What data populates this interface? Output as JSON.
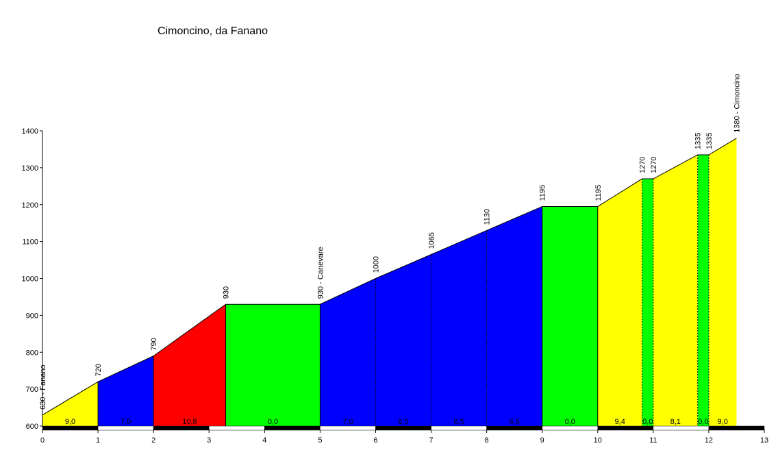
{
  "chart_data": {
    "type": "elevation-profile",
    "title": "Cimoncino, da Fanano",
    "x": [
      0,
      1,
      2,
      3.3,
      5,
      6,
      7,
      8,
      9,
      10,
      10.8,
      11,
      11.8,
      12,
      12.5
    ],
    "values": [
      630,
      720,
      790,
      930,
      930,
      1000,
      1065,
      1130,
      1195,
      1195,
      1270,
      1270,
      1335,
      1335,
      1380
    ],
    "value_labels": [
      "630 - Fanano",
      "720",
      "790",
      "930",
      "930 - Canevare",
      "1000",
      "1065",
      "1130",
      "1195",
      "1195",
      "1270",
      "1270",
      "1335",
      "1335",
      "1380 - Cimoncino"
    ],
    "segments": {
      "values": [
        9.0,
        7.0,
        10.8,
        0.0,
        7.0,
        6.5,
        6.5,
        6.5,
        0.0,
        9.4,
        0.0,
        8.1,
        0.0,
        9.0
      ],
      "value_labels": [
        "9,0",
        "7,0",
        "10,8",
        "0,0",
        "7,0",
        "6,5",
        "6,5",
        "6,5",
        "0,0",
        "9,4",
        "0,0",
        "8,1",
        "0,0",
        "9,0"
      ],
      "colors": [
        "#ffff00",
        "#0000ff",
        "#ff0000",
        "#00ff00",
        "#0000ff",
        "#0000ff",
        "#0000ff",
        "#0000ff",
        "#00ff00",
        "#ffff00",
        "#00ff00",
        "#ffff00",
        "#00ff00",
        "#ffff00"
      ]
    },
    "xlim": [
      0,
      13
    ],
    "xticks": [
      0,
      1,
      2,
      3,
      4,
      5,
      6,
      7,
      8,
      9,
      10,
      11,
      12,
      13
    ],
    "ylim": [
      600,
      1400
    ],
    "yticks": [
      600,
      700,
      800,
      900,
      1000,
      1100,
      1200,
      1300,
      1400
    ]
  }
}
